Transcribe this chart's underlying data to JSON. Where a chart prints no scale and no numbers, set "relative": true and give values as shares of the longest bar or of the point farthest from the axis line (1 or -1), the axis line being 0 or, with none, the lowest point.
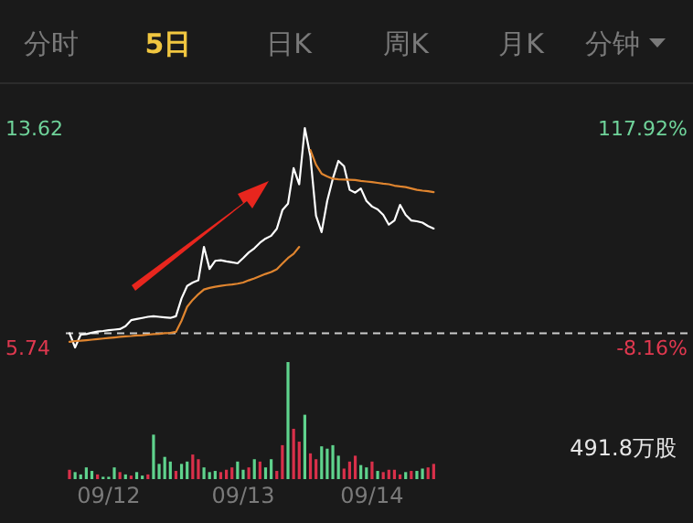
{
  "chart_data": [
    {
      "type": "other",
      "annotations": [
        "分时",
        "5日",
        "日K",
        "周K",
        "月K",
        "分钟"
      ]
    },
    {
      "type": "line",
      "categories": [
        null,
        null,
        null,
        null,
        null,
        null,
        null,
        null,
        null,
        null,
        null,
        null,
        null,
        null,
        null,
        null,
        null,
        null,
        null,
        null,
        null,
        null,
        null,
        null,
        null,
        null,
        null,
        null,
        null,
        null,
        null,
        null,
        null,
        null,
        null,
        null,
        null,
        null,
        null,
        null,
        null,
        null,
        null,
        null,
        null,
        null,
        null,
        null,
        null,
        null,
        null,
        null,
        null,
        null,
        null,
        null,
        null,
        null,
        null,
        null,
        null,
        null,
        null,
        null,
        null,
        null,
        null,
        null,
        null,
        null,
        null,
        null,
        null,
        null,
        null,
        null,
        null,
        null,
        null,
        null,
        null,
        null,
        null,
        null,
        null,
        null,
        null,
        null,
        null,
        null,
        null,
        null,
        null,
        null,
        null,
        null,
        null,
        null,
        null,
        null,
        null,
        null,
        null,
        null,
        null,
        null,
        null,
        null,
        null,
        null
      ],
      "ylim": [
        5.74,
        13.62
      ],
      "yticks": [
        13.62,
        5.74
      ],
      "y2lim": [
        -8.16,
        117.92
      ],
      "y2ticks": [
        {
          "value": 117.92,
          "label": "117.92%"
        },
        {
          "value": -8.16,
          "label": "-8.16%"
        }
      ],
      "tick_labels": "y",
      "line_style": "solid",
      "ref_lines": [
        {
          "axis": "y",
          "value": 6.25,
          "line_style": "dashed",
          "color": "#cccccc"
        }
      ],
      "series": [
        {
          "color": "#ffffff",
          "values": [
            6.25,
            5.74,
            6.2,
            6.22,
            6.27,
            6.31,
            6.33,
            6.36,
            6.38,
            6.4,
            6.5,
            6.72,
            6.76,
            6.8,
            6.84,
            6.86,
            6.84,
            6.82,
            6.8,
            6.86,
            7.5,
            7.95,
            8.07,
            8.15,
            9.35,
            8.56,
            8.85,
            8.87,
            8.83,
            8.8,
            8.76,
            8.95,
            9.15,
            9.3,
            9.5,
            9.65,
            9.75,
            10.0,
            10.67,
            10.9,
            12.18,
            11.6,
            13.62,
            12.6,
            10.47,
            9.88,
            11.0,
            11.8,
            12.44,
            12.25,
            11.4,
            11.3,
            11.45,
            11.0,
            10.8,
            10.7,
            10.5,
            10.15,
            10.3,
            10.86,
            10.5,
            10.3,
            10.27,
            10.22,
            10.1,
            10.01,
            null,
            null,
            null,
            null,
            null,
            null,
            null,
            null,
            null,
            null,
            null,
            null,
            null,
            null,
            null,
            null,
            null,
            null,
            null,
            null,
            null,
            null,
            null,
            null,
            null,
            null,
            null,
            null,
            null,
            null,
            null,
            null,
            null,
            null,
            null,
            null,
            null,
            null,
            null,
            null,
            null,
            null,
            null,
            null
          ]
        },
        {
          "color": "#e0852f",
          "values": [
            5.94,
            5.97,
            5.98,
            6.0,
            6.02,
            6.04,
            6.06,
            6.08,
            6.1,
            6.12,
            6.14,
            6.15,
            6.17,
            6.18,
            6.2,
            6.22,
            6.23,
            6.25,
            6.26,
            6.3,
            6.7,
            7.2,
            7.45,
            7.65,
            7.82,
            7.88,
            7.92,
            7.95,
            7.98,
            8.0,
            8.03,
            8.07,
            8.15,
            8.22,
            8.3,
            8.38,
            8.45,
            8.55,
            8.75,
            8.95,
            9.1,
            9.35,
            null,
            12.83,
            12.3,
            11.98,
            11.88,
            11.8,
            11.78,
            11.77,
            11.76,
            11.75,
            11.72,
            11.7,
            11.68,
            11.65,
            11.62,
            11.6,
            11.55,
            11.52,
            11.5,
            11.45,
            11.4,
            11.37,
            11.35,
            11.32,
            null,
            null,
            null,
            null,
            null,
            null,
            null,
            null,
            null,
            null,
            null,
            null,
            null,
            null,
            null,
            null,
            null,
            null,
            null,
            null,
            null,
            null,
            null,
            null,
            null,
            null,
            null,
            null,
            null,
            null,
            null,
            null,
            null,
            null,
            null,
            null,
            null,
            null,
            null,
            null,
            null,
            null,
            null,
            null
          ]
        }
      ]
    },
    {
      "type": "bar",
      "relative": true,
      "tick_labels": "x",
      "categories": [
        null,
        null,
        null,
        null,
        null,
        null,
        null,
        "09/12",
        null,
        null,
        null,
        null,
        null,
        null,
        null,
        null,
        null,
        null,
        null,
        null,
        null,
        null,
        null,
        null,
        null,
        null,
        null,
        null,
        null,
        null,
        null,
        "09/13",
        null,
        null,
        null,
        null,
        null,
        null,
        null,
        null,
        null,
        null,
        null,
        null,
        null,
        null,
        null,
        null,
        null,
        null,
        null,
        null,
        null,
        null,
        "09/14",
        null,
        null,
        null,
        null,
        null,
        null,
        null,
        null,
        null,
        null,
        null,
        null,
        null,
        null,
        null,
        null,
        null,
        null,
        null,
        null,
        null,
        null,
        null,
        null,
        null,
        null,
        null,
        null,
        null,
        null,
        null,
        null,
        null,
        null,
        null,
        null,
        null,
        null,
        null,
        null,
        null,
        null,
        null,
        null,
        null,
        null,
        null,
        null,
        null,
        null,
        null,
        null,
        null,
        null,
        null
      ],
      "annotations": [
        "491.8万股"
      ],
      "values": [
        0.08,
        0.06,
        0.04,
        0.1,
        0.07,
        0.04,
        0.02,
        0.02,
        0.1,
        0.06,
        0.04,
        0.03,
        0.06,
        0.03,
        0.04,
        0.38,
        0.13,
        0.19,
        0.15,
        0.07,
        0.13,
        0.15,
        0.21,
        0.17,
        0.1,
        0.06,
        0.07,
        0.06,
        0.08,
        0.1,
        0.15,
        0.08,
        0.1,
        0.17,
        0.15,
        0.1,
        0.17,
        0.07,
        0.29,
        1,
        0.43,
        0.32,
        0.55,
        0.22,
        0.17,
        0.28,
        0.26,
        0.29,
        0.2,
        0.09,
        0.15,
        0.2,
        0.12,
        0.1,
        0.15,
        0.07,
        0.06,
        0.08,
        0.08,
        0.04,
        0.06,
        0.07,
        0.07,
        0.09,
        0.1,
        0.13,
        null,
        null,
        null,
        null,
        null,
        null,
        null,
        null,
        null,
        null,
        null,
        null,
        null,
        null,
        null,
        null,
        null,
        null,
        null,
        null,
        null,
        null,
        null,
        null,
        null,
        null,
        null,
        null,
        null,
        null,
        null,
        null,
        null,
        null,
        null,
        null,
        null,
        null,
        null,
        null,
        null,
        null,
        null,
        null
      ],
      "colors": [
        "#d9304a",
        "#5fd38d",
        "#5fd38d",
        "#5fd38d",
        "#5fd38d",
        "#d9304a",
        "#5fd38d",
        "#5fd38d",
        "#5fd38d",
        "#d9304a",
        "#5fd38d",
        "#d9304a",
        "#5fd38d",
        "#5fd38d",
        "#d9304a",
        "#5fd38d",
        "#5fd38d",
        "#5fd38d",
        "#5fd38d",
        "#d9304a",
        "#5fd38d",
        "#5fd38d",
        "#d9304a",
        "#d9304a",
        "#5fd38d",
        "#5fd38d",
        "#5fd38d",
        "#d9304a",
        "#d9304a",
        "#d9304a",
        "#5fd38d",
        "#5fd38d",
        "#d9304a",
        "#5fd38d",
        "#d9304a",
        "#5fd38d",
        "#5fd38d",
        "#d9304a",
        "#d9304a",
        "#5fd38d",
        "#d9304a",
        "#d9304a",
        "#5fd38d",
        "#d9304a",
        "#d9304a",
        "#5fd38d",
        "#5fd38d",
        "#5fd38d",
        "#5fd38d",
        "#d9304a",
        "#d9304a",
        "#d9304a",
        "#5fd38d",
        "#5fd38d",
        "#d9304a",
        "#5fd38d",
        "#d9304a",
        "#d9304a",
        "#d9304a",
        "#d9304a",
        "#5fd38d",
        "#d9304a",
        "#5fd38d",
        "#5fd38d",
        "#d9304a",
        "#d9304a",
        null,
        null,
        null,
        null,
        null,
        null,
        null,
        null,
        null,
        null,
        null,
        null,
        null,
        null,
        null,
        null,
        null,
        null,
        null,
        null,
        null,
        null,
        null,
        null,
        null,
        null,
        null,
        null,
        null,
        null,
        null,
        null,
        null,
        null,
        null,
        null,
        null,
        null,
        null,
        null,
        null,
        null,
        null,
        null
      ]
    }
  ]
}
